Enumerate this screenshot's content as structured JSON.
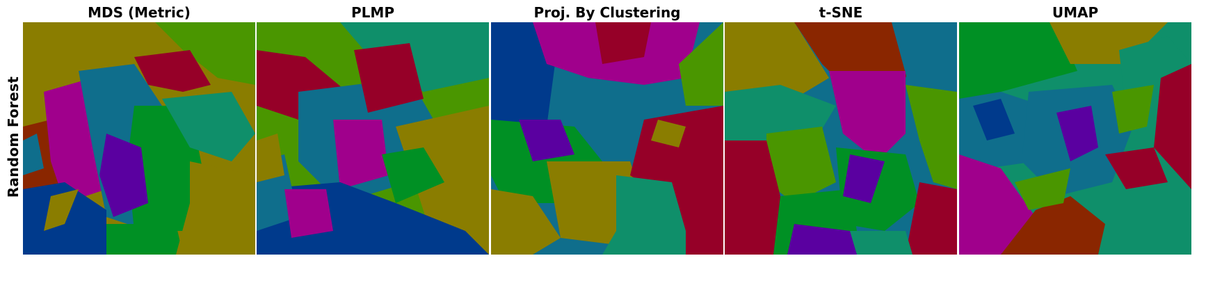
{
  "row_label": "Random Forest",
  "palette": {
    "olive": "#8a7d00",
    "green": "#4a9600",
    "teal": "#0f8f6a",
    "darkteal": "#0f6e8c",
    "blue": "#003a8c",
    "purple": "#5a00a0",
    "magenta": "#a0008c",
    "crimson": "#960028",
    "brown": "#8a2600",
    "forest": "#009024"
  },
  "panels": [
    {
      "title": "MDS (Metric)"
    },
    {
      "title": "PLMP"
    },
    {
      "title": "Proj. By Clustering"
    },
    {
      "title": "t-SNE"
    },
    {
      "title": "UMAP"
    }
  ]
}
